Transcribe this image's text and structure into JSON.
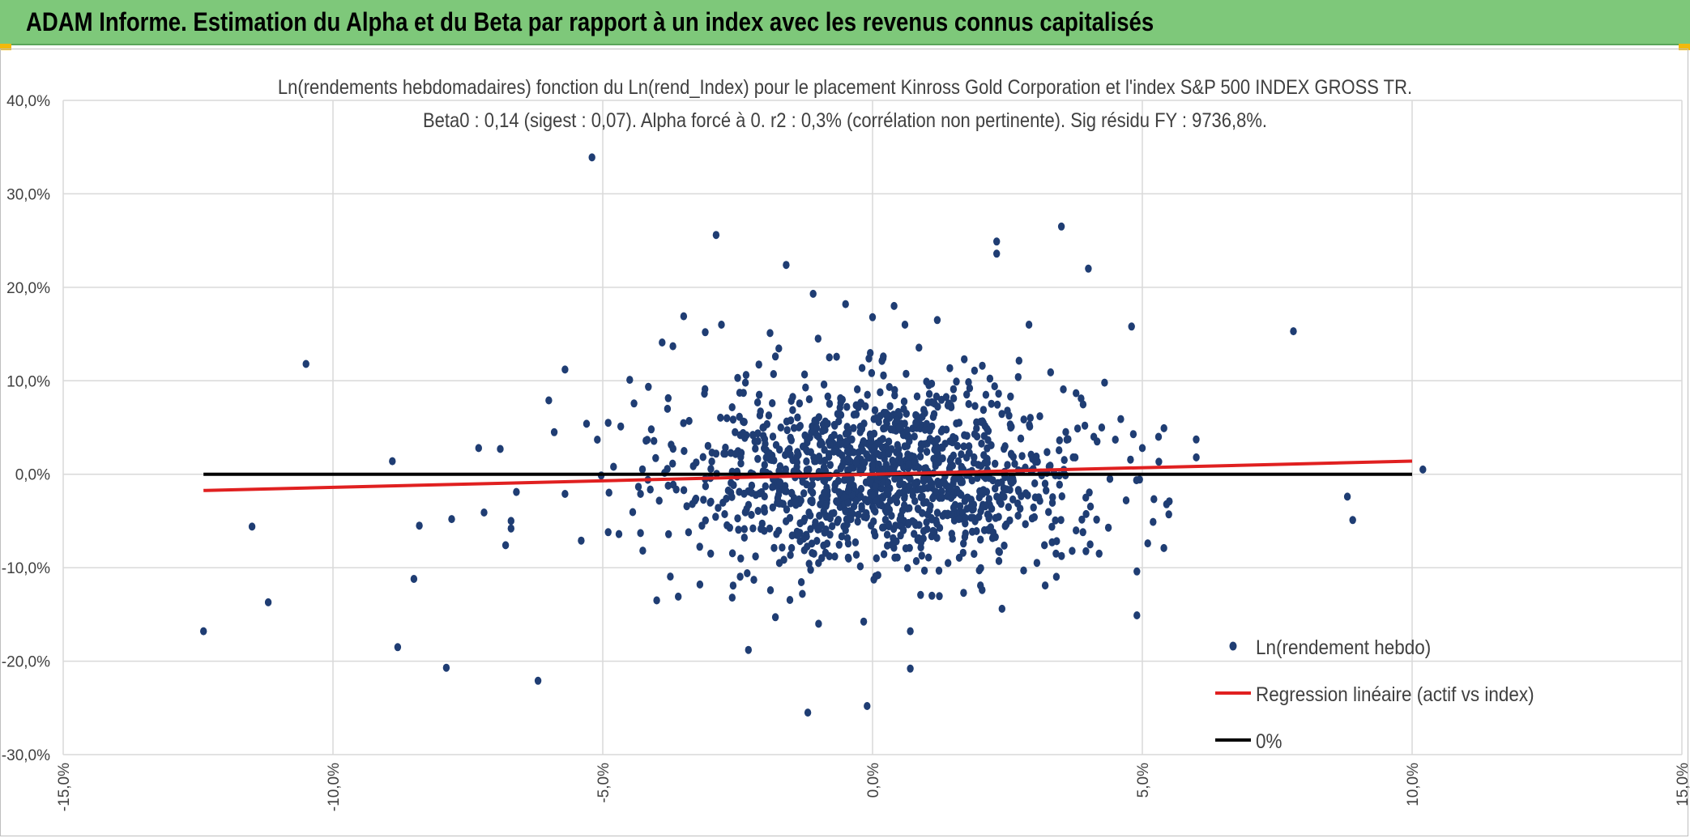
{
  "header": {
    "title": "ADAM Informe. Estimation du Alpha et du Beta par rapport à un index avec les revenus connus capitalisés"
  },
  "colors": {
    "banner": "#7ec87a",
    "points": "#1f3d73",
    "regression": "#e02020",
    "zero_line": "#000000",
    "grid": "#d9d9d9",
    "corner": "#f2b90c"
  },
  "chart_data": {
    "type": "scatter",
    "title": "Ln(rendements hebdomadaires) fonction du Ln(rend_Index) pour le placement Kinross Gold Corporation et l'index S&P 500 INDEX GROSS TR.",
    "subtitle": "Beta0 : 0,14 (sigest : 0,07). Alpha forcé à 0. r2 : 0,3% (corrélation non pertinente). Sig résidu FY : 9736,8%.",
    "xlim": [
      -0.15,
      0.15
    ],
    "ylim": [
      -0.3,
      0.4
    ],
    "x_ticks": [
      -0.15,
      -0.1,
      -0.05,
      0.0,
      0.05,
      0.1,
      0.15
    ],
    "x_tick_labels": [
      "-15,0%",
      "-10,0%",
      "-5,0%",
      "0,0%",
      "5,0%",
      "10,0%",
      "15,0%"
    ],
    "y_ticks": [
      -0.3,
      -0.2,
      -0.1,
      0.0,
      0.1,
      0.2,
      0.3,
      0.4
    ],
    "y_tick_labels": [
      "-30,0%",
      "-20,0%",
      "-10,0%",
      "0,0%",
      "10,0%",
      "20,0%",
      "30,0%",
      "40,0%"
    ],
    "grid": true,
    "legend_position": "bottom-right",
    "series": [
      {
        "name": "Ln(rendement hebdo)",
        "kind": "scatter",
        "points": [
          [
            -0.124,
            -0.168
          ],
          [
            -0.115,
            -0.056
          ],
          [
            -0.112,
            -0.137
          ],
          [
            -0.105,
            0.118
          ],
          [
            -0.089,
            0.014
          ],
          [
            -0.088,
            -0.185
          ],
          [
            -0.085,
            -0.112
          ],
          [
            -0.084,
            -0.055
          ],
          [
            -0.079,
            -0.207
          ],
          [
            -0.078,
            -0.048
          ],
          [
            -0.073,
            0.028
          ],
          [
            -0.072,
            -0.041
          ],
          [
            -0.069,
            0.027
          ],
          [
            -0.068,
            -0.076
          ],
          [
            -0.067,
            -0.058
          ],
          [
            -0.067,
            -0.05
          ],
          [
            -0.066,
            -0.019
          ],
          [
            -0.062,
            -0.221
          ],
          [
            -0.06,
            0.079
          ],
          [
            -0.059,
            0.045
          ],
          [
            -0.057,
            0.112
          ],
          [
            -0.057,
            -0.021
          ],
          [
            -0.054,
            -0.071
          ],
          [
            -0.053,
            0.054
          ],
          [
            -0.052,
            0.339
          ],
          [
            -0.051,
            0.037
          ],
          [
            -0.049,
            0.055
          ],
          [
            -0.049,
            -0.062
          ],
          [
            -0.048,
            0.008
          ],
          [
            -0.047,
            -0.064
          ],
          [
            -0.045,
            0.101
          ],
          [
            -0.043,
            -0.021
          ],
          [
            -0.043,
            -0.063
          ],
          [
            -0.042,
            0.036
          ],
          [
            -0.041,
            0.048
          ],
          [
            -0.04,
            -0.135
          ],
          [
            -0.039,
            0.141
          ],
          [
            -0.038,
            0.07
          ],
          [
            -0.037,
            0.137
          ],
          [
            -0.036,
            -0.131
          ],
          [
            -0.035,
            0.169
          ],
          [
            -0.034,
            0.057
          ],
          [
            -0.032,
            -0.118
          ],
          [
            -0.031,
            0.152
          ],
          [
            -0.03,
            -0.085
          ],
          [
            -0.029,
            0.256
          ],
          [
            -0.029,
            0.022
          ],
          [
            -0.028,
            0.16
          ],
          [
            -0.027,
            0.06
          ],
          [
            -0.026,
            -0.132
          ],
          [
            -0.025,
            0.103
          ],
          [
            -0.024,
            0.044
          ],
          [
            -0.023,
            -0.188
          ],
          [
            -0.022,
            -0.113
          ],
          [
            -0.021,
            0.085
          ],
          [
            -0.02,
            -0.04
          ],
          [
            -0.019,
            0.151
          ],
          [
            -0.018,
            -0.153
          ],
          [
            -0.018,
            0.126
          ],
          [
            -0.017,
            0.05
          ],
          [
            -0.016,
            0.224
          ],
          [
            -0.015,
            -0.079
          ],
          [
            -0.014,
            0.019
          ],
          [
            -0.013,
            -0.128
          ],
          [
            -0.012,
            -0.255
          ],
          [
            -0.011,
            0.193
          ],
          [
            -0.01,
            -0.16
          ],
          [
            -0.009,
            0.096
          ],
          [
            -0.008,
            0.125
          ],
          [
            -0.007,
            -0.088
          ],
          [
            -0.006,
            0.032
          ],
          [
            -0.005,
            0.182
          ],
          [
            -0.004,
            -0.048
          ],
          [
            -0.003,
            0.064
          ],
          [
            -0.002,
            -0.037
          ],
          [
            -0.001,
            -0.248
          ],
          [
            0.0,
            0.168
          ],
          [
            0.001,
            -0.108
          ],
          [
            0.002,
            0.126
          ],
          [
            0.003,
            0.022
          ],
          [
            0.004,
            0.18
          ],
          [
            0.005,
            -0.011
          ],
          [
            0.006,
            0.16
          ],
          [
            0.007,
            -0.168
          ],
          [
            0.007,
            -0.208
          ],
          [
            0.008,
            0.055
          ],
          [
            0.009,
            -0.073
          ],
          [
            0.01,
            0.099
          ],
          [
            0.011,
            -0.13
          ],
          [
            0.012,
            0.165
          ],
          [
            0.013,
            0.017
          ],
          [
            0.014,
            -0.095
          ],
          [
            0.015,
            0.091
          ],
          [
            0.016,
            -0.048
          ],
          [
            0.017,
            0.123
          ],
          [
            0.018,
            -0.036
          ],
          [
            0.019,
            0.073
          ],
          [
            0.02,
            -0.119
          ],
          [
            0.021,
            0.085
          ],
          [
            0.022,
            0.031
          ],
          [
            0.023,
            0.249
          ],
          [
            0.023,
            0.236
          ],
          [
            0.024,
            -0.144
          ],
          [
            0.025,
            0.068
          ],
          [
            0.026,
            -0.027
          ],
          [
            0.027,
            0.104
          ],
          [
            0.028,
            -0.103
          ],
          [
            0.029,
            0.16
          ],
          [
            0.03,
            -0.046
          ],
          [
            0.031,
            0.062
          ],
          [
            0.032,
            -0.119
          ],
          [
            0.033,
            0.109
          ],
          [
            0.034,
            -0.085
          ],
          [
            0.035,
            0.265
          ],
          [
            0.036,
            0.037
          ],
          [
            0.037,
            -0.082
          ],
          [
            0.038,
            0.049
          ],
          [
            0.039,
            -0.062
          ],
          [
            0.04,
            0.22
          ],
          [
            0.041,
            0.04
          ],
          [
            0.042,
            -0.085
          ],
          [
            0.043,
            0.098
          ],
          [
            0.044,
            -0.005
          ],
          [
            0.045,
            0.037
          ],
          [
            0.046,
            0.059
          ],
          [
            0.047,
            -0.028
          ],
          [
            0.048,
            0.158
          ],
          [
            0.049,
            -0.151
          ],
          [
            0.049,
            -0.104
          ],
          [
            0.05,
            0.028
          ],
          [
            0.051,
            -0.074
          ],
          [
            0.052,
            -0.051
          ],
          [
            0.053,
            0.04
          ],
          [
            0.054,
            -0.079
          ],
          [
            0.055,
            -0.029
          ],
          [
            0.06,
            0.018
          ],
          [
            0.078,
            0.153
          ],
          [
            0.088,
            -0.024
          ],
          [
            0.089,
            -0.049
          ],
          [
            0.102,
            0.005
          ],
          [
            -0.02,
            0.01
          ],
          [
            -0.015,
            -0.02
          ],
          [
            -0.01,
            0.04
          ],
          [
            -0.005,
            -0.06
          ],
          [
            0.0,
            0.005
          ],
          [
            0.005,
            0.05
          ],
          [
            0.01,
            -0.03
          ],
          [
            0.015,
            0.02
          ],
          [
            0.02,
            -0.07
          ],
          [
            0.025,
            0.01
          ]
        ],
        "cluster": {
          "center": [
            0.002,
            0.0
          ],
          "sd": [
            0.018,
            0.048
          ],
          "count": 1200
        }
      },
      {
        "name": "Regression linéaire (actif vs index)",
        "kind": "line",
        "x": [
          -0.124,
          0.1
        ],
        "y": [
          -0.0174,
          0.014
        ]
      },
      {
        "name": "0%",
        "kind": "line",
        "x": [
          -0.124,
          0.1
        ],
        "y": [
          0.0,
          0.0
        ]
      }
    ]
  }
}
